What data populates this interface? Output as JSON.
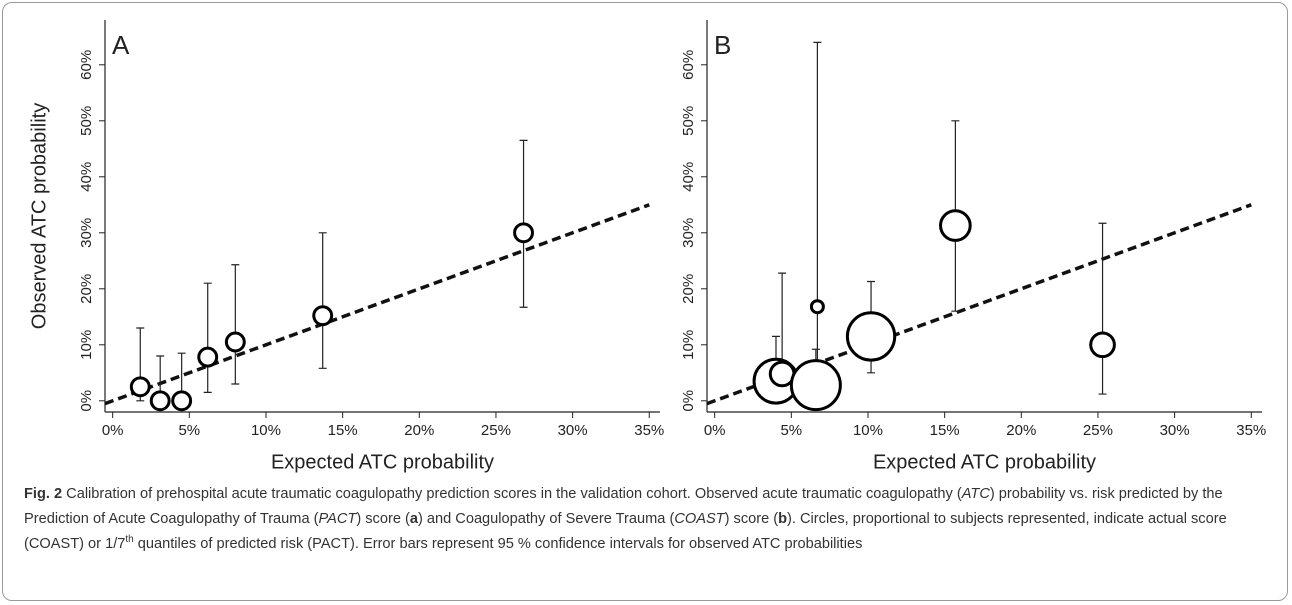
{
  "chart_data": [
    {
      "type": "scatter",
      "panel_label": "A",
      "x_label": "Expected ATC probability",
      "y_label": "Observed ATC probability",
      "x": [
        1.8,
        3.1,
        4.5,
        6.2,
        8.0,
        13.7,
        26.8
      ],
      "values": [
        2.5,
        0,
        0,
        7.8,
        10.5,
        15.2,
        30.0
      ],
      "ci_low": [
        0,
        0,
        0,
        1.5,
        3.0,
        5.8,
        16.7
      ],
      "ci_high": [
        13.0,
        8.0,
        8.5,
        21.0,
        24.3,
        30.0,
        46.5
      ],
      "sizes": [
        80,
        80,
        80,
        80,
        80,
        80,
        80
      ],
      "color": "#000000",
      "diagonal": true,
      "xlim": [
        -0.5,
        35.7
      ],
      "ylim": [
        -2,
        68
      ],
      "xticks": [
        {
          "value": 0,
          "label": "0%"
        },
        {
          "value": 5,
          "label": "5%"
        },
        {
          "value": 10,
          "label": "10%"
        },
        {
          "value": 15,
          "label": "15%"
        },
        {
          "value": 20,
          "label": "20%"
        },
        {
          "value": 25,
          "label": "25%"
        },
        {
          "value": 30,
          "label": "30%"
        },
        {
          "value": 35,
          "label": "35%"
        }
      ],
      "yticks": [
        {
          "value": 0,
          "label": "0%"
        },
        {
          "value": 10,
          "label": "10%"
        },
        {
          "value": 20,
          "label": "20%"
        },
        {
          "value": 30,
          "label": "30%"
        },
        {
          "value": 40,
          "label": "40%"
        },
        {
          "value": 50,
          "label": "50%"
        },
        {
          "value": 60,
          "label": "60%"
        }
      ]
    },
    {
      "type": "scatter",
      "panel_label": "B",
      "x_label": "Expected ATC probability",
      "x": [
        4.0,
        4.4,
        6.6,
        6.7,
        10.2,
        15.7,
        25.3
      ],
      "values": [
        3.5,
        4.8,
        2.8,
        16.8,
        11.5,
        31.3,
        10.0
      ],
      "ci_low": [
        0,
        0,
        0,
        0,
        5.0,
        16.0,
        1.2
      ],
      "ci_high": [
        11.5,
        22.8,
        9.2,
        64.0,
        21.3,
        50.0,
        31.7
      ],
      "sizes": [
        480,
        140,
        600,
        36,
        560,
        220,
        140
      ],
      "color": "#000000",
      "diagonal": true,
      "xlim": [
        -0.5,
        35.7
      ],
      "ylim": [
        -2,
        68
      ],
      "xticks": [
        {
          "value": 0,
          "label": "0%"
        },
        {
          "value": 5,
          "label": "5%"
        },
        {
          "value": 10,
          "label": "10%"
        },
        {
          "value": 15,
          "label": "15%"
        },
        {
          "value": 20,
          "label": "20%"
        },
        {
          "value": 25,
          "label": "25%"
        },
        {
          "value": 30,
          "label": "30%"
        },
        {
          "value": 35,
          "label": "35%"
        }
      ],
      "yticks": [
        {
          "value": 0,
          "label": "0%"
        },
        {
          "value": 10,
          "label": "10%"
        },
        {
          "value": 20,
          "label": "20%"
        },
        {
          "value": 30,
          "label": "30%"
        },
        {
          "value": 40,
          "label": "40%"
        },
        {
          "value": 50,
          "label": "50%"
        },
        {
          "value": 60,
          "label": "60%"
        }
      ]
    }
  ],
  "caption": {
    "segments": [
      "Fig. 2",
      " Calibration of prehospital acute traumatic coagulopathy prediction scores in the validation cohort. Observed acute traumatic coagulopathy (",
      "ATC",
      ") probability vs. risk predicted by the Prediction of Acute Coagulopathy of Trauma (",
      "PACT",
      ") score (",
      "a",
      ") and Coagulopathy of Severe Trauma (",
      "COAST",
      ") score (",
      "b",
      "). Circles, proportional to subjects represented, indicate actual score (COAST) or 1/7",
      "th",
      " quantiles of predicted risk (PACT). Error bars represent 95 % confidence intervals for observed ATC probabilities"
    ]
  }
}
